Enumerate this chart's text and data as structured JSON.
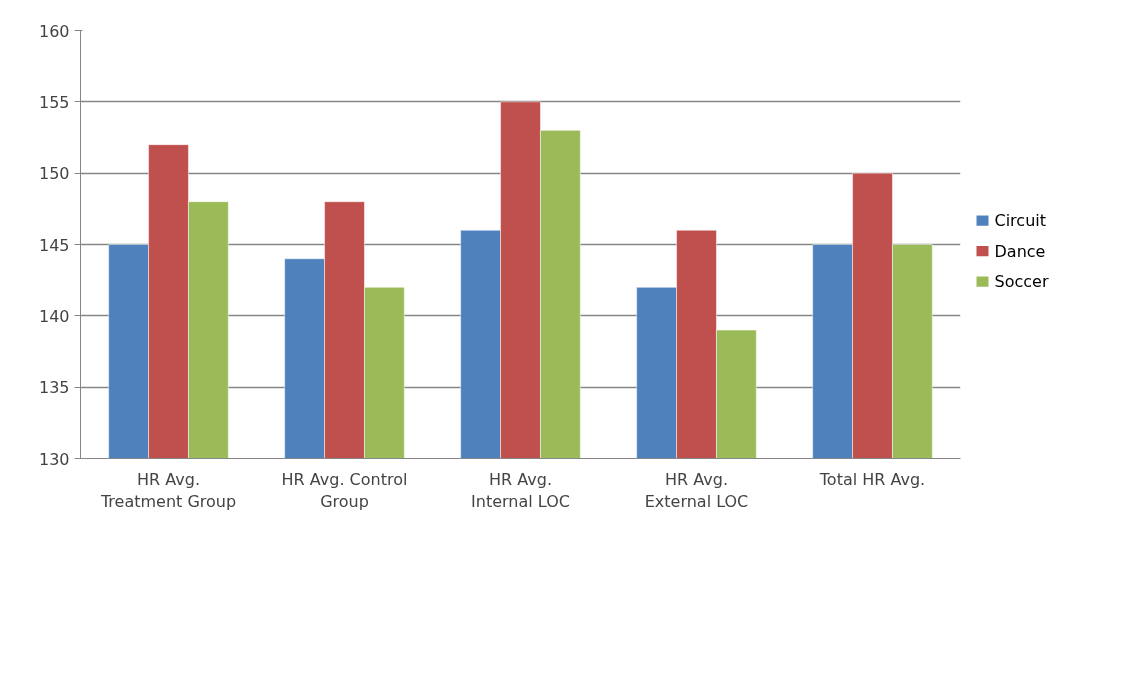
{
  "chart_data": {
    "type": "bar",
    "categories": [
      "HR Avg. Treatment Group",
      "HR Avg. Control Group",
      "HR Avg. Internal LOC",
      "HR Avg. External LOC",
      "Total HR Avg."
    ],
    "series": [
      {
        "name": "Circuit",
        "color": "#4f81bd",
        "values": [
          145,
          144,
          146,
          142,
          145
        ]
      },
      {
        "name": "Dance",
        "color": "#c0504d",
        "values": [
          152,
          148,
          155,
          146,
          150
        ]
      },
      {
        "name": "Soccer",
        "color": "#9bbb59",
        "values": [
          148,
          142,
          153,
          139,
          145
        ]
      }
    ],
    "ylim": [
      130,
      160
    ],
    "yticks": [
      130,
      135,
      140,
      145,
      150,
      155,
      160
    ],
    "grid": "y",
    "legend": "right"
  }
}
